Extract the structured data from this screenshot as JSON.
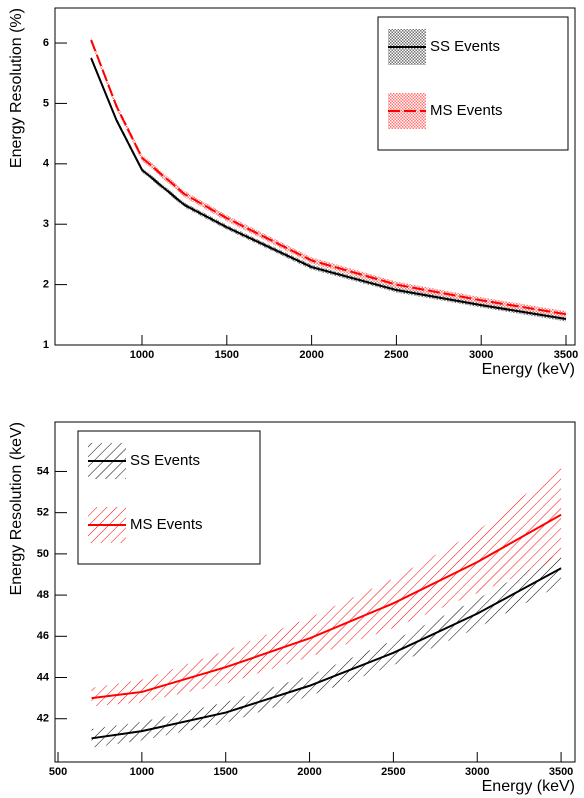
{
  "chart_data": [
    {
      "type": "line",
      "x_label": "Energy (keV)",
      "y_label": "Energy Resolution (%)",
      "xlim": [
        487,
        3553
      ],
      "ylim": [
        1,
        6.58
      ],
      "xticks": [
        1000,
        1500,
        2000,
        2500,
        3000,
        3500
      ],
      "yticks": [
        1,
        2,
        3,
        4,
        5,
        6
      ],
      "legend": "top-right",
      "band_pattern": "dense",
      "x": [
        700,
        850,
        1000,
        1250,
        1500,
        2000,
        2500,
        3000,
        3500
      ],
      "series": [
        {
          "name": "SS Events",
          "color": "#000000",
          "dash": false,
          "values": [
            5.75,
            4.72,
            3.9,
            3.32,
            2.95,
            2.29,
            1.91,
            1.66,
            1.43
          ],
          "lower": [
            5.71,
            4.68,
            3.86,
            3.28,
            2.91,
            2.25,
            1.87,
            1.62,
            1.39
          ],
          "upper": [
            5.79,
            4.76,
            3.94,
            3.36,
            2.99,
            2.33,
            1.95,
            1.7,
            1.47
          ]
        },
        {
          "name": "MS Events",
          "color": "#ff0000",
          "dash": true,
          "values": [
            6.05,
            4.95,
            4.1,
            3.5,
            3.1,
            2.4,
            2.0,
            1.74,
            1.51
          ],
          "lower": [
            6.0,
            4.9,
            4.05,
            3.45,
            3.05,
            2.35,
            1.95,
            1.69,
            1.46
          ],
          "upper": [
            6.1,
            5.0,
            4.15,
            3.55,
            3.15,
            2.45,
            2.05,
            1.79,
            1.56
          ]
        }
      ]
    },
    {
      "type": "line",
      "x_label": "Energy (keV)",
      "y_label": "Energy Resolution (keV)",
      "xlim": [
        482,
        3583
      ],
      "ylim": [
        39.9,
        56.4
      ],
      "xticks": [
        500,
        1000,
        1500,
        2000,
        2500,
        3000,
        3500
      ],
      "yticks": [
        42,
        44,
        46,
        48,
        50,
        52,
        54
      ],
      "legend": "top-left",
      "band_pattern": "hatch",
      "x": [
        700,
        1000,
        1500,
        2000,
        2500,
        3000,
        3500
      ],
      "series": [
        {
          "name": "SS Events",
          "color": "#000000",
          "dash": false,
          "values": [
            41.05,
            41.4,
            42.3,
            43.6,
            45.2,
            47.1,
            49.3
          ],
          "lower": [
            40.6,
            40.95,
            41.8,
            43.1,
            44.6,
            46.4,
            48.5
          ],
          "upper": [
            41.5,
            41.85,
            42.8,
            44.1,
            45.8,
            47.8,
            50.1
          ]
        },
        {
          "name": "MS Events",
          "color": "#ff0000",
          "dash": false,
          "values": [
            43.0,
            43.3,
            44.5,
            45.9,
            47.6,
            49.6,
            51.9
          ],
          "lower": [
            42.6,
            42.8,
            43.7,
            45.0,
            46.4,
            48.1,
            49.8
          ],
          "upper": [
            43.5,
            43.9,
            45.3,
            46.9,
            48.8,
            51.1,
            54.2
          ]
        }
      ]
    }
  ]
}
